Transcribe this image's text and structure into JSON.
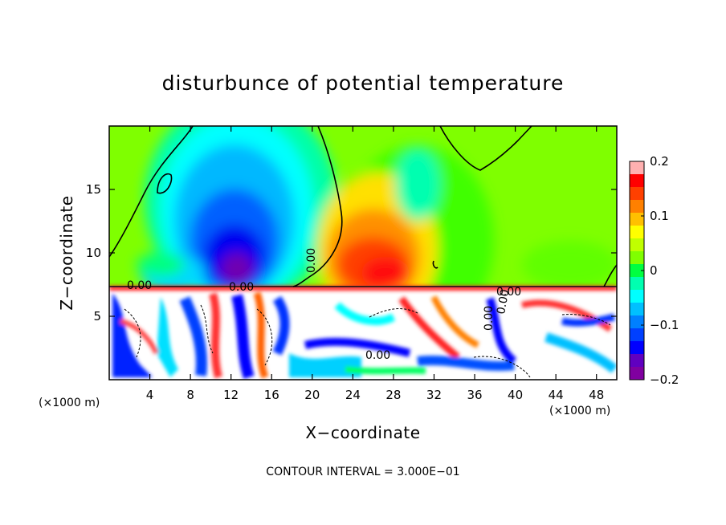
{
  "chart_data": {
    "type": "heatmap",
    "title": "disturbunce of potential temperature",
    "xlabel": "X−coordinate",
    "ylabel": "Z−coordinate",
    "x_units": "(×1000 m)",
    "xlim": [
      0,
      50
    ],
    "ylim": [
      0,
      20
    ],
    "x_ticks": [
      "4",
      "8",
      "12",
      "16",
      "20",
      "24",
      "28",
      "32",
      "36",
      "40",
      "44",
      "48"
    ],
    "y_ticks": [
      "5",
      "10",
      "15"
    ],
    "colorbar": {
      "range": [
        -0.2,
        0.2
      ],
      "labels": [
        "0.2",
        "0.1",
        "0",
        "−0.1",
        "−0.2"
      ],
      "colors": [
        "#ffb0b0",
        "#ff0000",
        "#ff4000",
        "#ff8000",
        "#ffc000",
        "#ffff00",
        "#c0ff00",
        "#80ff00",
        "#00ff40",
        "#00ffb0",
        "#00ffff",
        "#00c0ff",
        "#0080ff",
        "#0040ff",
        "#0000ff",
        "#6000c0",
        "#8000a0"
      ]
    },
    "contour_labels": [
      "0.00",
      "0.00",
      "0.00",
      "0.00",
      "0.00",
      "0.00",
      "0.00"
    ],
    "contour_note": "CONTOUR INTERVAL = 3.000E−01",
    "features": [
      {
        "x": 13,
        "z": 11,
        "value": -0.2
      },
      {
        "x": 26,
        "z": 11,
        "value": 0.15
      },
      {
        "x": 0,
        "z": 15,
        "value": 0.02
      },
      {
        "x": 33,
        "z": 17,
        "value": 0.03
      }
    ]
  }
}
